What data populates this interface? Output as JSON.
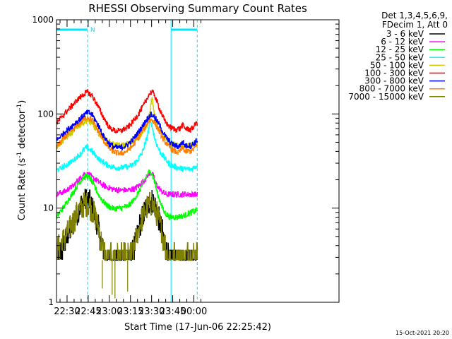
{
  "chart_data": {
    "type": "line",
    "title": "RHESSI Observing Summary Count Rates",
    "xlabel": "Start Time (17-Jun-06 22:25:42)",
    "ylabel_main": "Count Rate (s",
    "ylabel_sup1": "-1",
    "ylabel_mid": " detector",
    "ylabel_sup2": "-1",
    "ylabel_end": ")",
    "yscale": "log",
    "ylim": [
      1,
      1000
    ],
    "xlim_minutes": [
      22.5,
      223.0
    ],
    "x_ticks": [
      {
        "m": 30,
        "label": "22:30"
      },
      {
        "m": 45,
        "label": "22:45"
      },
      {
        "m": 60,
        "label": "23:00"
      },
      {
        "m": 75,
        "label": "23:15"
      },
      {
        "m": 90,
        "label": "23:30"
      },
      {
        "m": 105,
        "label": "23:45"
      },
      {
        "m": 120,
        "label": "00:00"
      }
    ],
    "y_ticks": [
      {
        "v": 1,
        "label": "1"
      },
      {
        "v": 10,
        "label": "10"
      },
      {
        "v": 100,
        "label": "100"
      },
      {
        "v": 1000,
        "label": "1000"
      }
    ],
    "legend_header": [
      "Det 1,3,4,5,6,9,",
      "FDecim 1, Att 0"
    ],
    "date_stamp": "15-Oct-2021 20:20",
    "night_marker_label": "N",
    "night_intervals": [
      [
        22.5,
        44.5
      ],
      [
        103.8,
        122.4
      ]
    ],
    "series": [
      {
        "name": "3 - 6 keV",
        "color": "#000000",
        "values": [
          [
            22.5,
            2.8
          ],
          [
            27,
            4
          ],
          [
            33,
            6
          ],
          [
            38,
            9.5
          ],
          [
            42,
            12
          ],
          [
            45,
            12
          ],
          [
            48,
            10
          ],
          [
            52,
            6.5
          ],
          [
            55,
            3.8
          ],
          [
            57,
            2.8
          ],
          [
            63,
            2.8
          ],
          [
            70,
            2.8
          ],
          [
            75,
            2.8
          ],
          [
            78,
            4
          ],
          [
            82,
            7
          ],
          [
            86,
            10
          ],
          [
            89,
            12
          ],
          [
            91,
            12
          ],
          [
            94,
            9
          ],
          [
            97,
            6
          ],
          [
            100,
            3.8
          ],
          [
            102,
            2.8
          ],
          [
            110,
            2.8
          ],
          [
            118,
            3
          ],
          [
            122,
            3
          ]
        ]
      },
      {
        "name": "6 - 12 keV",
        "color": "#ff00ff",
        "values": [
          [
            22.5,
            14
          ],
          [
            28,
            15
          ],
          [
            34,
            17
          ],
          [
            38,
            20
          ],
          [
            42,
            23
          ],
          [
            45,
            23
          ],
          [
            48,
            21
          ],
          [
            52,
            19
          ],
          [
            57,
            17
          ],
          [
            62,
            16
          ],
          [
            67,
            15.5
          ],
          [
            73,
            15.5
          ],
          [
            78,
            16
          ],
          [
            82,
            18
          ],
          [
            86,
            21
          ],
          [
            89,
            24
          ],
          [
            91,
            22
          ],
          [
            93,
            18
          ],
          [
            97,
            15
          ],
          [
            100,
            14
          ],
          [
            106,
            14
          ],
          [
            112,
            14
          ],
          [
            117,
            14
          ],
          [
            122,
            14
          ]
        ]
      },
      {
        "name": "12 - 25 keV",
        "color": "#00ff00",
        "values": [
          [
            22.5,
            8
          ],
          [
            27,
            10
          ],
          [
            32,
            13
          ],
          [
            37,
            17
          ],
          [
            41,
            21
          ],
          [
            44,
            22
          ],
          [
            47,
            20
          ],
          [
            51,
            15
          ],
          [
            55,
            12
          ],
          [
            59,
            10.5
          ],
          [
            63,
            10
          ],
          [
            68,
            10
          ],
          [
            73,
            10.5
          ],
          [
            77,
            12
          ],
          [
            81,
            15
          ],
          [
            85,
            20
          ],
          [
            88,
            24
          ],
          [
            90,
            24
          ],
          [
            92,
            19
          ],
          [
            95,
            13
          ],
          [
            99,
            9
          ],
          [
            103,
            8
          ],
          [
            108,
            8
          ],
          [
            114,
            8.5
          ],
          [
            118,
            9
          ],
          [
            122,
            9.5
          ]
        ]
      },
      {
        "name": "25 - 50 keV",
        "color": "#00ffff",
        "values": [
          [
            22.5,
            25
          ],
          [
            28,
            28
          ],
          [
            33,
            31
          ],
          [
            38,
            36
          ],
          [
            42,
            42
          ],
          [
            44,
            44
          ],
          [
            47,
            41
          ],
          [
            51,
            35
          ],
          [
            55,
            31
          ],
          [
            60,
            28
          ],
          [
            65,
            27
          ],
          [
            70,
            27
          ],
          [
            75,
            28
          ],
          [
            79,
            31
          ],
          [
            83,
            38
          ],
          [
            86,
            52
          ],
          [
            88,
            72
          ],
          [
            89,
            82
          ],
          [
            90,
            78
          ],
          [
            92,
            55
          ],
          [
            95,
            42
          ],
          [
            99,
            34
          ],
          [
            103,
            29
          ],
          [
            108,
            27
          ],
          [
            113,
            26
          ],
          [
            118,
            26
          ],
          [
            122,
            28
          ]
        ]
      },
      {
        "name": "50 - 100 keV",
        "color": "#cccc00",
        "values": [
          [
            22.5,
            45
          ],
          [
            28,
            54
          ],
          [
            34,
            65
          ],
          [
            39,
            76
          ],
          [
            43,
            84
          ],
          [
            46,
            82
          ],
          [
            50,
            70
          ],
          [
            54,
            58
          ],
          [
            58,
            52
          ],
          [
            62,
            48
          ],
          [
            66,
            46
          ],
          [
            71,
            47
          ],
          [
            76,
            50
          ],
          [
            80,
            55
          ],
          [
            84,
            65
          ],
          [
            87,
            80
          ],
          [
            89,
            110
          ],
          [
            90,
            150
          ],
          [
            91,
            120
          ],
          [
            93,
            85
          ],
          [
            96,
            65
          ],
          [
            100,
            55
          ],
          [
            104,
            48
          ],
          [
            108,
            46
          ],
          [
            112,
            45
          ],
          [
            117,
            46
          ],
          [
            122,
            48
          ]
        ]
      },
      {
        "name": "100 - 300 keV",
        "color": "#ff0000",
        "values": [
          [
            22.5,
            80
          ],
          [
            28,
            100
          ],
          [
            34,
            125
          ],
          [
            39,
            150
          ],
          [
            43,
            168
          ],
          [
            45,
            170
          ],
          [
            48,
            155
          ],
          [
            52,
            120
          ],
          [
            56,
            90
          ],
          [
            60,
            72
          ],
          [
            64,
            66
          ],
          [
            68,
            66
          ],
          [
            72,
            70
          ],
          [
            76,
            80
          ],
          [
            80,
            98
          ],
          [
            84,
            120
          ],
          [
            88,
            160
          ],
          [
            90,
            175
          ],
          [
            92,
            160
          ],
          [
            95,
            120
          ],
          [
            99,
            85
          ],
          [
            103,
            72
          ],
          [
            107,
            68
          ],
          [
            110,
            70
          ],
          [
            112,
            76
          ],
          [
            114,
            70
          ],
          [
            118,
            68
          ],
          [
            122,
            80
          ]
        ]
      },
      {
        "name": "300 - 800 keV",
        "color": "#0000ff",
        "values": [
          [
            22.5,
            52
          ],
          [
            28,
            64
          ],
          [
            34,
            76
          ],
          [
            39,
            88
          ],
          [
            43,
            100
          ],
          [
            45,
            104
          ],
          [
            48,
            96
          ],
          [
            52,
            76
          ],
          [
            56,
            58
          ],
          [
            60,
            48
          ],
          [
            64,
            44
          ],
          [
            68,
            44
          ],
          [
            72,
            46
          ],
          [
            76,
            52
          ],
          [
            80,
            62
          ],
          [
            84,
            76
          ],
          [
            87,
            90
          ],
          [
            89,
            98
          ],
          [
            91,
            96
          ],
          [
            94,
            84
          ],
          [
            98,
            64
          ],
          [
            102,
            52
          ],
          [
            106,
            46
          ],
          [
            109,
            45
          ],
          [
            112,
            50
          ],
          [
            114,
            46
          ],
          [
            118,
            46
          ],
          [
            122,
            52
          ]
        ]
      },
      {
        "name": "800 - 7000 keV",
        "color": "#ff8000",
        "values": [
          [
            22.5,
            45
          ],
          [
            28,
            56
          ],
          [
            34,
            68
          ],
          [
            39,
            80
          ],
          [
            43,
            90
          ],
          [
            45,
            92
          ],
          [
            48,
            85
          ],
          [
            52,
            66
          ],
          [
            56,
            52
          ],
          [
            60,
            43
          ],
          [
            64,
            39
          ],
          [
            68,
            38
          ],
          [
            72,
            40
          ],
          [
            76,
            45
          ],
          [
            80,
            55
          ],
          [
            84,
            68
          ],
          [
            87,
            80
          ],
          [
            89,
            88
          ],
          [
            91,
            85
          ],
          [
            94,
            72
          ],
          [
            98,
            55
          ],
          [
            102,
            45
          ],
          [
            106,
            40
          ],
          [
            109,
            39
          ],
          [
            112,
            44
          ],
          [
            114,
            40
          ],
          [
            118,
            40
          ],
          [
            122,
            46
          ]
        ]
      },
      {
        "name": "7000 - 15000 keV",
        "color": "#808000",
        "values": [
          [
            22.5,
            3.6
          ],
          [
            27,
            4.5
          ],
          [
            33,
            6.5
          ],
          [
            38,
            9.5
          ],
          [
            42,
            11
          ],
          [
            45,
            11
          ],
          [
            48,
            9.5
          ],
          [
            52,
            6.5
          ],
          [
            55,
            4
          ],
          [
            57,
            3
          ],
          [
            63,
            3
          ],
          [
            70,
            3
          ],
          [
            75,
            3
          ],
          [
            78,
            4
          ],
          [
            82,
            7
          ],
          [
            86,
            10
          ],
          [
            89,
            11
          ],
          [
            91,
            11
          ],
          [
            94,
            8.5
          ],
          [
            97,
            5.8
          ],
          [
            100,
            3.8
          ],
          [
            102,
            3
          ],
          [
            110,
            3
          ],
          [
            118,
            3.2
          ],
          [
            122,
            3.4
          ]
        ]
      }
    ]
  }
}
